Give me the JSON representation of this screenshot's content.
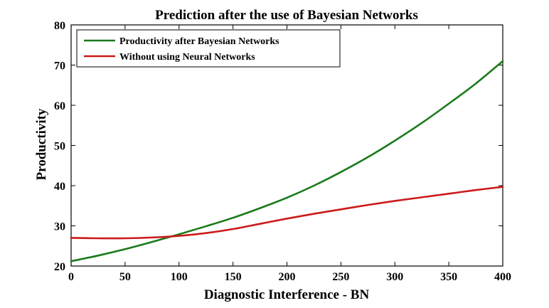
{
  "chart_data": {
    "type": "line",
    "title": "Prediction after the use of Bayesian Networks",
    "xlabel": "Diagnostic Interference - BN",
    "ylabel": "Productivity",
    "xlim": [
      0,
      400
    ],
    "ylim": [
      20,
      80
    ],
    "xticks": [
      "0",
      "50",
      "100",
      "150",
      "200",
      "250",
      "300",
      "350",
      "400"
    ],
    "yticks": [
      "20",
      "30",
      "40",
      "50",
      "60",
      "70",
      "80"
    ],
    "grid": false,
    "legend_position": "top-left",
    "series": [
      {
        "name": "Productivity after Bayesian Networks",
        "color": "#1a7a1a",
        "x": [
          0,
          25,
          50,
          75,
          100,
          125,
          150,
          175,
          200,
          225,
          250,
          275,
          300,
          325,
          350,
          375,
          400
        ],
        "y": [
          21.2,
          22.6,
          24.2,
          26.0,
          27.9,
          29.9,
          32.0,
          34.4,
          37.0,
          40.0,
          43.4,
          47.1,
          51.2,
          55.6,
          60.4,
          65.4,
          71.0
        ]
      },
      {
        "name": "Without using Neural Networks",
        "color": "#cc1a1a",
        "x": [
          0,
          25,
          50,
          75,
          100,
          125,
          150,
          175,
          200,
          225,
          250,
          275,
          300,
          325,
          350,
          375,
          400
        ],
        "y": [
          27.0,
          26.9,
          26.9,
          27.1,
          27.5,
          28.2,
          29.2,
          30.5,
          31.8,
          33.0,
          34.1,
          35.2,
          36.2,
          37.1,
          38.0,
          38.9,
          39.7
        ]
      }
    ]
  }
}
